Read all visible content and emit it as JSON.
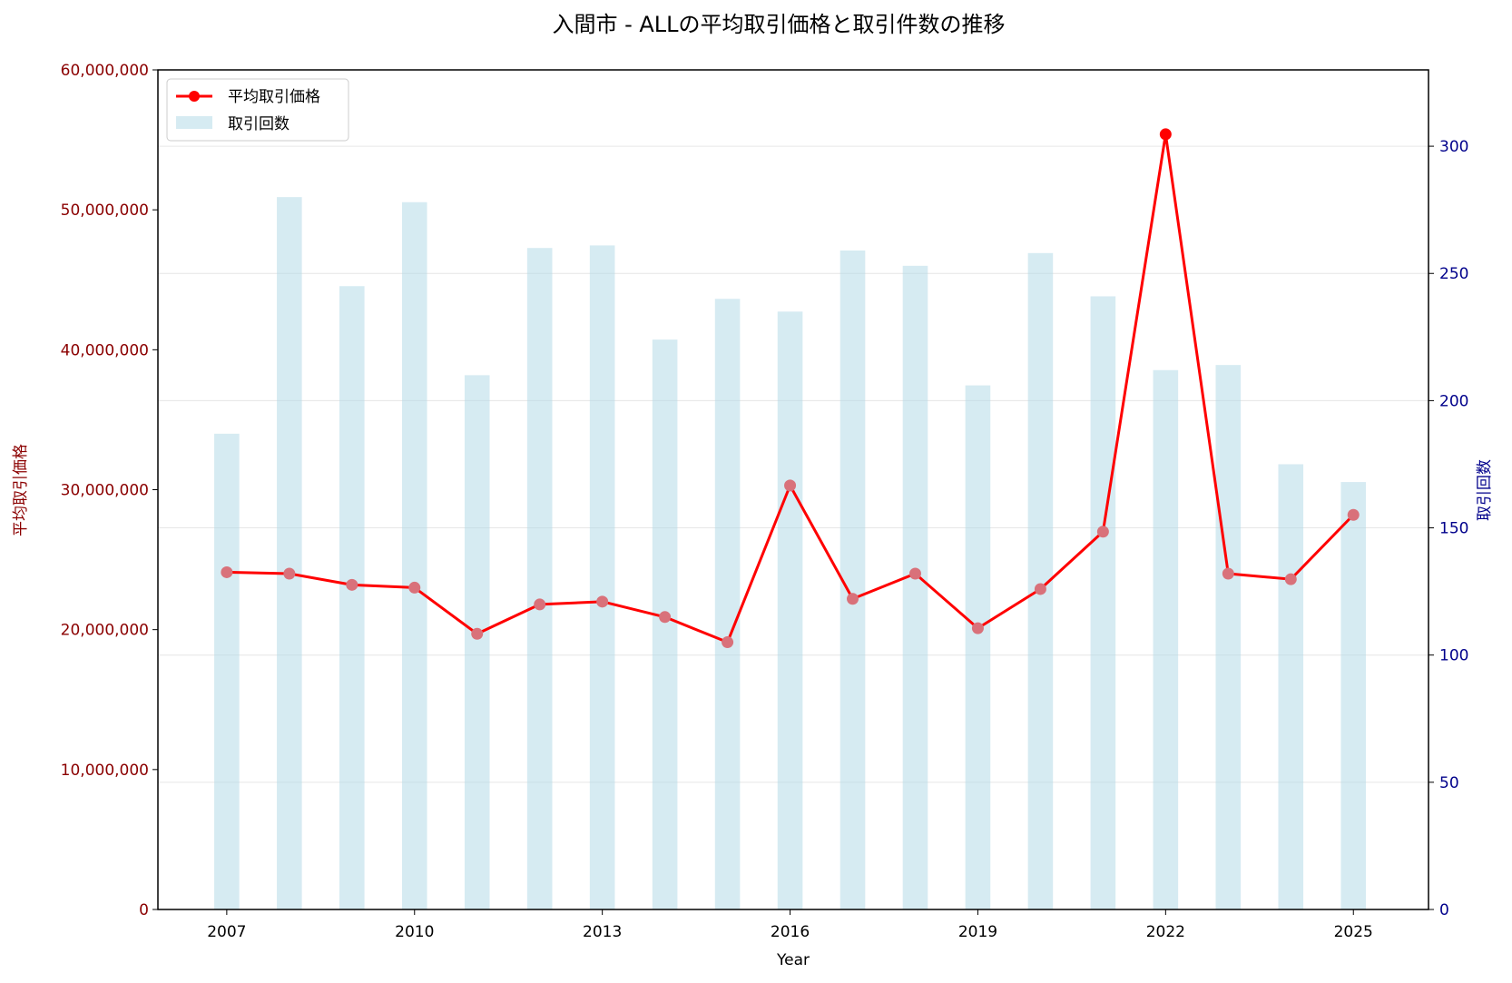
{
  "chart_data": {
    "type": "bar+line",
    "title": "入間市 - ALLの平均取引価格と取引件数の推移",
    "xlabel": "Year",
    "ylabel_left": "平均取引価格",
    "ylabel_right": "取引回数",
    "x": [
      2007,
      2008,
      2009,
      2010,
      2011,
      2012,
      2013,
      2014,
      2015,
      2016,
      2017,
      2018,
      2019,
      2020,
      2021,
      2022,
      2023,
      2024,
      2025
    ],
    "x_ticks": [
      2007,
      2010,
      2013,
      2016,
      2019,
      2022,
      2025
    ],
    "xlim": [
      2005.9,
      2026.2
    ],
    "ylim_left": [
      0,
      60000000
    ],
    "ylim_right": [
      0,
      330
    ],
    "y_ticks_left": [
      0,
      10000000,
      20000000,
      30000000,
      40000000,
      50000000,
      60000000
    ],
    "y_ticks_left_labels": [
      "0",
      "10,000,000",
      "20,000,000",
      "30,000,000",
      "40,000,000",
      "50,000,000",
      "60,000,000"
    ],
    "y_ticks_right": [
      0,
      50,
      100,
      150,
      200,
      250,
      300
    ],
    "grid": "horizontal (right axis)",
    "legend_position": "top-left",
    "series": [
      {
        "name": "平均取引価格",
        "type": "line",
        "axis": "left",
        "color": "#ff0000",
        "marker_color": "#d9717a",
        "highlight_marker_color": "#ff0000",
        "values": [
          24100000,
          24000000,
          23200000,
          23000000,
          19700000,
          21800000,
          22000000,
          20900000,
          19100000,
          30300000,
          22200000,
          24000000,
          20100000,
          22900000,
          27000000,
          55400000,
          24000000,
          23600000,
          28200000
        ]
      },
      {
        "name": "取引回数",
        "type": "bar",
        "axis": "right",
        "color": "#add8e6",
        "values": [
          187,
          280,
          245,
          278,
          210,
          260,
          261,
          224,
          240,
          235,
          259,
          253,
          206,
          258,
          241,
          212,
          214,
          175,
          168
        ]
      }
    ],
    "colors": {
      "left_axis": "#8b0000",
      "right_axis": "#00008b",
      "grid": "#e6e6e6"
    }
  }
}
